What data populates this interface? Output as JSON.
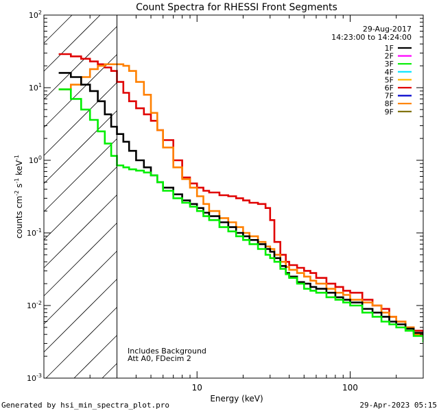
{
  "chart_data": {
    "type": "line",
    "title": "Count Spectra for RHESSI Front Segments",
    "xlabel": "Energy (keV)",
    "ylabel": "counts cm-2 s-1 keV-1",
    "xscale": "log",
    "yscale": "log",
    "xlim": [
      1,
      300
    ],
    "ylim": [
      0.001,
      100
    ],
    "x_tick_labels": [
      {
        "value": 10,
        "label": "10"
      },
      {
        "value": 100,
        "label": "100"
      }
    ],
    "y_tick_labels": [
      {
        "value": 100,
        "base": "10",
        "exp": "2"
      },
      {
        "value": 10,
        "base": "10",
        "exp": "1"
      },
      {
        "value": 1,
        "base": "10",
        "exp": "0"
      },
      {
        "value": 0.1,
        "base": "10",
        "exp": "-1"
      },
      {
        "value": 0.01,
        "base": "10",
        "exp": "-2"
      },
      {
        "value": 0.001,
        "base": "10",
        "exp": "-3"
      }
    ],
    "excluded_region": {
      "from": 1,
      "to": 3,
      "style": "hatched"
    },
    "date": "29-Aug-2017",
    "time_range": "14:23:00 to 14:24:00",
    "legend_position": "top-right",
    "legend": [
      {
        "name": "1F",
        "color": "#000000"
      },
      {
        "name": "2F",
        "color": "#ff00ff"
      },
      {
        "name": "3F",
        "color": "#00ee00"
      },
      {
        "name": "4F",
        "color": "#00e5ff"
      },
      {
        "name": "5F",
        "color": "#ffbb00"
      },
      {
        "name": "6F",
        "color": "#e00000"
      },
      {
        "name": "7F",
        "color": "#0000cc"
      },
      {
        "name": "8F",
        "color": "#ff8000"
      },
      {
        "name": "9F",
        "color": "#7a6a00"
      }
    ],
    "annotations": [
      "Includes Background",
      "Att A0, FDecim 2"
    ],
    "series": [
      {
        "name": "6F",
        "color": "#e00000",
        "x": [
          1.25,
          1.5,
          1.75,
          2.0,
          2.25,
          2.5,
          2.75,
          3.0,
          3.3,
          3.6,
          4.0,
          4.5,
          5.0,
          5.5,
          6.0,
          7.0,
          8.0,
          9.0,
          10,
          11,
          12,
          14,
          16,
          18,
          20,
          22,
          25,
          28,
          30,
          32,
          35,
          38,
          40,
          45,
          50,
          55,
          60,
          70,
          80,
          90,
          100,
          120,
          140,
          160,
          180,
          200,
          230,
          260,
          300
        ],
        "y": [
          29,
          27,
          25,
          23,
          21,
          19,
          17,
          12,
          8.5,
          6.5,
          5.2,
          4.3,
          3.5,
          2.6,
          1.9,
          1.0,
          0.58,
          0.48,
          0.42,
          0.38,
          0.36,
          0.33,
          0.32,
          0.3,
          0.28,
          0.26,
          0.25,
          0.22,
          0.15,
          0.075,
          0.05,
          0.04,
          0.036,
          0.033,
          0.03,
          0.028,
          0.024,
          0.02,
          0.018,
          0.016,
          0.015,
          0.012,
          0.01,
          0.009,
          0.007,
          0.006,
          0.005,
          0.0045,
          0.0038
        ]
      },
      {
        "name": "8F",
        "color": "#ff8000",
        "x": [
          1.25,
          1.5,
          1.75,
          2.0,
          2.25,
          2.5,
          2.75,
          3.0,
          3.3,
          3.6,
          4.0,
          4.5,
          5.0,
          5.5,
          6.0,
          7.0,
          8.0,
          9.0,
          10,
          11,
          12,
          14,
          16,
          18,
          20,
          22,
          25,
          28,
          30,
          32,
          35,
          38,
          40,
          45,
          50,
          55,
          60,
          70,
          80,
          90,
          100,
          120,
          140,
          160,
          180,
          200,
          230,
          260,
          300
        ],
        "y": [
          9.5,
          11,
          14,
          18,
          20,
          21,
          21,
          21,
          20,
          17,
          12,
          8,
          4.5,
          2.6,
          1.5,
          0.8,
          0.55,
          0.42,
          0.32,
          0.25,
          0.2,
          0.16,
          0.14,
          0.12,
          0.1,
          0.09,
          0.075,
          0.065,
          0.06,
          0.05,
          0.04,
          0.034,
          0.031,
          0.028,
          0.025,
          0.022,
          0.02,
          0.017,
          0.015,
          0.014,
          0.012,
          0.011,
          0.01,
          0.008,
          0.007,
          0.006,
          0.005,
          0.004,
          0.0035
        ]
      },
      {
        "name": "1F",
        "color": "#000000",
        "x": [
          1.25,
          1.5,
          1.75,
          2.0,
          2.25,
          2.5,
          2.75,
          3.0,
          3.3,
          3.6,
          4.0,
          4.5,
          5.0,
          5.5,
          6.0,
          7.0,
          8.0,
          9.0,
          10,
          11,
          12,
          14,
          16,
          18,
          20,
          22,
          25,
          28,
          30,
          32,
          35,
          38,
          40,
          45,
          50,
          55,
          60,
          70,
          80,
          90,
          100,
          120,
          140,
          160,
          180,
          200,
          230,
          260,
          300
        ],
        "y": [
          16,
          14,
          11,
          9,
          6.5,
          4.3,
          2.9,
          2.3,
          1.8,
          1.35,
          1.0,
          0.8,
          0.62,
          0.5,
          0.42,
          0.34,
          0.28,
          0.25,
          0.22,
          0.19,
          0.17,
          0.14,
          0.12,
          0.1,
          0.09,
          0.08,
          0.07,
          0.06,
          0.055,
          0.045,
          0.035,
          0.028,
          0.025,
          0.021,
          0.02,
          0.018,
          0.017,
          0.015,
          0.013,
          0.012,
          0.011,
          0.009,
          0.008,
          0.007,
          0.006,
          0.0055,
          0.0048,
          0.0042,
          0.0035
        ]
      },
      {
        "name": "3F",
        "color": "#00ee00",
        "x": [
          1.25,
          1.5,
          1.75,
          2.0,
          2.25,
          2.5,
          2.75,
          3.0,
          3.3,
          3.6,
          4.0,
          4.5,
          5.0,
          5.5,
          6.0,
          7.0,
          8.0,
          9.0,
          10,
          11,
          12,
          14,
          16,
          18,
          20,
          22,
          25,
          28,
          30,
          32,
          35,
          38,
          40,
          45,
          50,
          55,
          60,
          70,
          80,
          90,
          100,
          120,
          140,
          160,
          180,
          200,
          230,
          260,
          300
        ],
        "y": [
          9.5,
          7,
          5,
          3.6,
          2.5,
          1.7,
          1.15,
          0.85,
          0.8,
          0.75,
          0.72,
          0.68,
          0.62,
          0.5,
          0.38,
          0.3,
          0.26,
          0.23,
          0.2,
          0.17,
          0.15,
          0.12,
          0.105,
          0.09,
          0.08,
          0.07,
          0.06,
          0.05,
          0.045,
          0.04,
          0.032,
          0.027,
          0.024,
          0.02,
          0.017,
          0.016,
          0.015,
          0.013,
          0.012,
          0.011,
          0.01,
          0.008,
          0.007,
          0.006,
          0.0055,
          0.005,
          0.0045,
          0.0038,
          0.0031
        ]
      }
    ]
  },
  "footer": {
    "generated_by": "Generated by hsi_min_spectra_plot.pro",
    "timestamp": "29-Apr-2023 05:15"
  }
}
